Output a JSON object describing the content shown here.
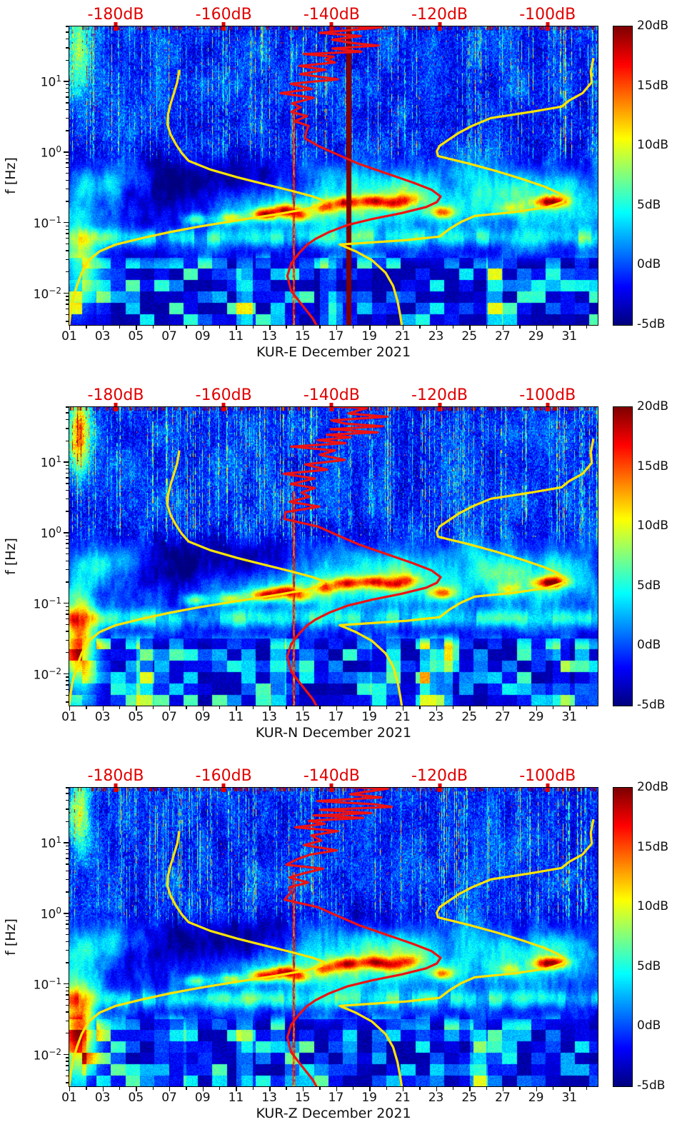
{
  "page": {
    "background": "#ffffff"
  },
  "top_axis": {
    "color": "#e00000",
    "range_db": [
      -188.6,
      -90.7
    ],
    "labels": [
      {
        "text": "-180dB",
        "db": -180
      },
      {
        "text": "-160dB",
        "db": -160
      },
      {
        "text": "-140dB",
        "db": -140
      },
      {
        "text": "-120dB",
        "db": -120
      },
      {
        "text": "-100dB",
        "db": -100
      }
    ]
  },
  "y_axis": {
    "label": "f [Hz]",
    "scale": "log",
    "log_range_exp": [
      -2.44,
      1.79
    ],
    "tick_exponents": [
      1,
      0,
      -1,
      -2
    ]
  },
  "x_axis": {
    "range_days": [
      1,
      32.7
    ],
    "ticks": [
      {
        "label": "01",
        "day": 1
      },
      {
        "label": "03",
        "day": 3
      },
      {
        "label": "05",
        "day": 5
      },
      {
        "label": "07",
        "day": 7
      },
      {
        "label": "09",
        "day": 9
      },
      {
        "label": "11",
        "day": 11
      },
      {
        "label": "13",
        "day": 13
      },
      {
        "label": "15",
        "day": 15
      },
      {
        "label": "17",
        "day": 17
      },
      {
        "label": "19",
        "day": 19
      },
      {
        "label": "21",
        "day": 21
      },
      {
        "label": "23",
        "day": 23
      },
      {
        "label": "25",
        "day": 25
      },
      {
        "label": "27",
        "day": 27
      },
      {
        "label": "29",
        "day": 29
      },
      {
        "label": "31",
        "day": 31
      }
    ],
    "minor_days": [
      2,
      4,
      6,
      8,
      10,
      12,
      14,
      16,
      18,
      20,
      22,
      24,
      26,
      28,
      30,
      32
    ]
  },
  "colorbar": {
    "range_db": [
      -5,
      20
    ],
    "colormap": "jet",
    "ticks": [
      {
        "label": "20dB",
        "value": 20
      },
      {
        "label": "15dB",
        "value": 15
      },
      {
        "label": "10dB",
        "value": 10
      },
      {
        "label": "5dB",
        "value": 5
      },
      {
        "label": "0dB",
        "value": 0
      },
      {
        "label": "-5dB",
        "value": -5
      }
    ]
  },
  "panels": [
    {
      "station": "KUR-E",
      "title": "KUR-E December 2021",
      "seed": 1,
      "bar_day": 17.75,
      "left_blob_amp": 9,
      "topleft_blob_amp": 10
    },
    {
      "station": "KUR-N",
      "title": "KUR-N December 2021",
      "seed": 2,
      "bar_day": null,
      "left_blob_amp": 16,
      "topleft_blob_amp": 14
    },
    {
      "station": "KUR-Z",
      "title": "KUR-Z December 2021",
      "seed": 3,
      "bar_day": null,
      "left_blob_amp": 15,
      "topleft_blob_amp": 9
    }
  ],
  "overlay_curves": {
    "red_color": "#ed1212",
    "yellow_color": "#ffe400",
    "station_psd_hz_db": [
      [
        200,
        -147
      ],
      [
        100,
        -135
      ],
      [
        70,
        -152
      ],
      [
        60,
        -133
      ],
      [
        50,
        -139
      ],
      [
        45,
        -133
      ],
      [
        40,
        -141
      ],
      [
        36,
        -135
      ],
      [
        33,
        -129
      ],
      [
        30,
        -140
      ],
      [
        27,
        -134
      ],
      [
        25,
        -143
      ],
      [
        23,
        -137
      ],
      [
        21,
        -144
      ],
      [
        19,
        -138
      ],
      [
        17,
        -144.5
      ],
      [
        15,
        -140
      ],
      [
        13,
        -145
      ],
      [
        11,
        -141
      ],
      [
        9.5,
        -145.5
      ],
      [
        8,
        -142
      ],
      [
        7,
        -146
      ],
      [
        6,
        -143
      ],
      [
        5,
        -146.5
      ],
      [
        4.4,
        -144
      ],
      [
        3.8,
        -147
      ],
      [
        3.3,
        -144.5
      ],
      [
        2.8,
        -147
      ],
      [
        2.4,
        -145
      ],
      [
        2,
        -147
      ],
      [
        1.6,
        -145.5
      ],
      [
        1.25,
        -142.5
      ],
      [
        0.95,
        -139
      ],
      [
        0.7,
        -135
      ],
      [
        0.5,
        -129.5
      ],
      [
        0.38,
        -125
      ],
      [
        0.3,
        -121.5
      ],
      [
        0.24,
        -119.8
      ],
      [
        0.2,
        -120.5
      ],
      [
        0.17,
        -122.5
      ],
      [
        0.14,
        -127
      ],
      [
        0.115,
        -132.5
      ],
      [
        0.095,
        -137
      ],
      [
        0.075,
        -140.5
      ],
      [
        0.06,
        -143
      ],
      [
        0.05,
        -144.5
      ],
      [
        0.038,
        -146
      ],
      [
        0.027,
        -147.5
      ],
      [
        0.018,
        -148.2
      ],
      [
        0.011,
        -147.5
      ],
      [
        0.007,
        -145.5
      ],
      [
        0.0045,
        -143.5
      ],
      [
        0.0036,
        -142.8
      ]
    ],
    "nlnm_hz_db": [
      [
        15,
        -168.2
      ],
      [
        10,
        -168.6
      ],
      [
        7,
        -169.2
      ],
      [
        5,
        -169.8
      ],
      [
        3.5,
        -170.3
      ],
      [
        2.5,
        -170.4
      ],
      [
        1.8,
        -169.8
      ],
      [
        1.3,
        -168.8
      ],
      [
        1,
        -167.8
      ],
      [
        0.77,
        -166.5
      ],
      [
        0.58,
        -162.5
      ],
      [
        0.45,
        -157.5
      ],
      [
        0.36,
        -152.5
      ],
      [
        0.29,
        -147.5
      ],
      [
        0.24,
        -143.5
      ],
      [
        0.21,
        -141.4
      ],
      [
        0.185,
        -141.9
      ],
      [
        0.16,
        -144.5
      ],
      [
        0.135,
        -150
      ],
      [
        0.11,
        -157.5
      ],
      [
        0.09,
        -164.5
      ],
      [
        0.075,
        -170
      ],
      [
        0.062,
        -175
      ],
      [
        0.05,
        -180
      ],
      [
        0.04,
        -183
      ],
      [
        0.03,
        -185
      ],
      [
        0.02,
        -186.3
      ],
      [
        0.013,
        -187.2
      ],
      [
        0.008,
        -188
      ],
      [
        0.005,
        -188.4
      ],
      [
        0.0036,
        -188.6
      ]
    ],
    "nhnm_hz_db": [
      [
        22,
        -91.5
      ],
      [
        14,
        -92
      ],
      [
        10,
        -91.8
      ],
      [
        7,
        -93.5
      ],
      [
        5.5,
        -96
      ],
      [
        4.5,
        -97.4
      ],
      [
        3.8,
        -103
      ],
      [
        3.1,
        -110.5
      ],
      [
        2.4,
        -114
      ],
      [
        1.9,
        -116.5
      ],
      [
        1.5,
        -118.5
      ],
      [
        1.25,
        -120
      ],
      [
        1.05,
        -120.5
      ],
      [
        0.9,
        -120.3
      ],
      [
        0.7,
        -114.5
      ],
      [
        0.55,
        -109.5
      ],
      [
        0.42,
        -104.5
      ],
      [
        0.33,
        -100.5
      ],
      [
        0.27,
        -98
      ],
      [
        0.23,
        -96.7
      ],
      [
        0.2,
        -97.2
      ],
      [
        0.17,
        -100
      ],
      [
        0.145,
        -106
      ],
      [
        0.127,
        -113.5
      ],
      [
        0.105,
        -116
      ],
      [
        0.085,
        -118
      ],
      [
        0.065,
        -120
      ],
      [
        0.058,
        -126
      ],
      [
        0.05,
        -138.5
      ],
      [
        0.04,
        -135.5
      ],
      [
        0.03,
        -132.5
      ],
      [
        0.02,
        -130
      ],
      [
        0.013,
        -128.6
      ],
      [
        0.008,
        -127.8
      ],
      [
        0.005,
        -127.3
      ],
      [
        0.0036,
        -127
      ]
    ]
  },
  "texture": {
    "hot_blobs_day_hz_amp": [
      [
        12.7,
        0.135,
        15
      ],
      [
        13.9,
        0.155,
        13
      ],
      [
        14.8,
        0.13,
        9
      ],
      [
        10.7,
        0.12,
        9
      ],
      [
        8.6,
        0.115,
        8
      ],
      [
        16.3,
        0.17,
        8
      ],
      [
        17.6,
        0.2,
        12
      ],
      [
        19.2,
        0.21,
        11
      ],
      [
        20.4,
        0.19,
        9
      ],
      [
        21.3,
        0.22,
        7
      ],
      [
        23.35,
        0.145,
        10
      ],
      [
        27.4,
        0.165,
        6
      ],
      [
        29.6,
        0.2,
        11
      ],
      [
        30.3,
        0.21,
        8
      ]
    ],
    "cool_blobs_day_hz_amp": [
      [
        18,
        0.45,
        4.5
      ],
      [
        21,
        0.35,
        4
      ],
      [
        15.5,
        0.6,
        3.5
      ],
      [
        25,
        0.5,
        3
      ],
      [
        4.5,
        0.45,
        4
      ],
      [
        2.5,
        0.35,
        5
      ],
      [
        30.5,
        0.35,
        4
      ],
      [
        27,
        0.3,
        3.5
      ]
    ],
    "red_line_days": [
      14.45
    ]
  },
  "chart_data": [
    {
      "type": "heatmap",
      "subtype": "seismic-spectrogram-ppsd",
      "title": "KUR-E December 2021",
      "xlabel": "KUR-E December 2021",
      "ylabel": "f [Hz]",
      "y_scale": "log",
      "x_range_days": [
        1,
        32.7
      ],
      "y_range_hz": [
        0.0036,
        62
      ],
      "color_range_db": [
        -5,
        20
      ],
      "colormap": "jet",
      "colorbar_ticks_db": [
        20,
        15,
        10,
        5,
        0,
        -5
      ],
      "top_axis_psd_ticks_db": [
        -180,
        -160,
        -140,
        -120,
        -100
      ],
      "overlays": [
        "red curve = station median PSD vs frequency, read on top dB axis (overlay_curves.station_psd_hz_db)",
        "yellow left curve = low noise model (overlay_curves.nlnm_hz_db)",
        "yellow right curve = high noise model (overlay_curves.nhnm_hz_db)"
      ],
      "notable_features": [
        "dark-red saturated vertical bar at day ~17.7 spanning all frequencies",
        "strong microseism energy 0.1-0.25 Hz days 8-24 and 29-30, peaks ~15-20 dB",
        "warm low-frequency patch days 1-2 below 0.1 Hz",
        "dense vertical noise streaks above 1 Hz all month",
        "thin red spike line near day 14.4"
      ]
    },
    {
      "type": "heatmap",
      "subtype": "seismic-spectrogram-ppsd",
      "title": "KUR-N December 2021",
      "xlabel": "KUR-N December 2021",
      "ylabel": "f [Hz]",
      "y_scale": "log",
      "x_range_days": [
        1,
        32.7
      ],
      "y_range_hz": [
        0.0036,
        62
      ],
      "color_range_db": [
        -5,
        20
      ],
      "colormap": "jet",
      "colorbar_ticks_db": [
        20,
        15,
        10,
        5,
        0,
        -5
      ],
      "top_axis_psd_ticks_db": [
        -180,
        -160,
        -140,
        -120,
        -100
      ],
      "overlays": [
        "red curve = station median PSD (overlay_curves.station_psd_hz_db)",
        "yellow curves = low/high noise models (overlay_curves.nlnm_hz_db / nhnm_hz_db)"
      ],
      "notable_features": [
        "strong red low-frequency blob days 1-2 below 0.1 Hz",
        "microseism band 0.1-0.25 Hz strongest days 8-24 and 29-30",
        "dense vertical noise streaks above 1 Hz all month",
        "thin red spike line near day 14.4"
      ]
    },
    {
      "type": "heatmap",
      "subtype": "seismic-spectrogram-ppsd",
      "title": "KUR-Z December 2021",
      "xlabel": "KUR-Z December 2021",
      "ylabel": "f [Hz]",
      "y_scale": "log",
      "x_range_days": [
        1,
        32.7
      ],
      "y_range_hz": [
        0.0036,
        62
      ],
      "color_range_db": [
        -5,
        20
      ],
      "colormap": "jet",
      "colorbar_ticks_db": [
        20,
        15,
        10,
        5,
        0,
        -5
      ],
      "top_axis_psd_ticks_db": [
        -180,
        -160,
        -140,
        -120,
        -100
      ],
      "overlays": [
        "red curve = station median PSD (overlay_curves.station_psd_hz_db)",
        "yellow curves = low/high noise models (overlay_curves.nlnm_hz_db / nhnm_hz_db)"
      ],
      "notable_features": [
        "strong red low-frequency blob days 1-2 below 0.1 Hz",
        "microseism band 0.1-0.25 Hz strongest days 8-24 and 29-30",
        "dense vertical noise streaks above 1 Hz all month",
        "thin red spike line near day 14.4"
      ]
    }
  ]
}
